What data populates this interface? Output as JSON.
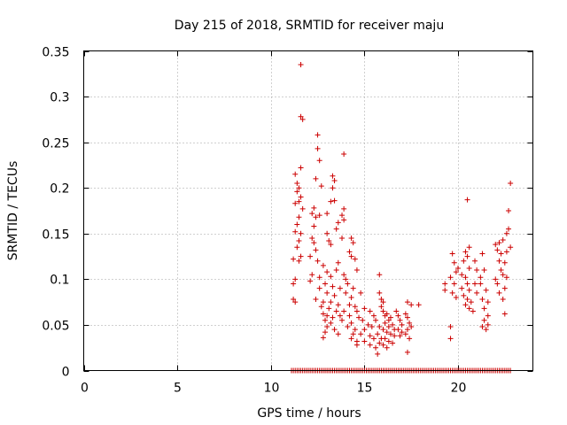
{
  "chart_data": {
    "type": "scatter",
    "title": "Day 215 of 2018, SRMTID for receiver maju",
    "xlabel": "GPS time / hours",
    "ylabel": "SRMTID / TECUs",
    "xlim": [
      0,
      24
    ],
    "ylim": [
      0,
      0.35
    ],
    "x_ticks": [
      0,
      5,
      10,
      15,
      20
    ],
    "x_tick_labels": [
      "0",
      "5",
      "10",
      "15",
      "20"
    ],
    "y_ticks": [
      0,
      0.05,
      0.1,
      0.15,
      0.2,
      0.25,
      0.3,
      0.35
    ],
    "y_tick_labels": [
      "0",
      "0.05",
      "0.1",
      "0.15",
      "0.2",
      "0.25",
      "0.3",
      "0.35"
    ],
    "grid": true,
    "marker": "+",
    "color": "#cc0000",
    "series": [
      {
        "name": "SRMTID",
        "points": [
          [
            11.6,
            0.335
          ],
          [
            11.6,
            0.278
          ],
          [
            11.7,
            0.275
          ],
          [
            12.5,
            0.258
          ],
          [
            12.5,
            0.243
          ],
          [
            13.9,
            0.237
          ],
          [
            12.6,
            0.23
          ],
          [
            11.6,
            0.222
          ],
          [
            11.3,
            0.215
          ],
          [
            13.3,
            0.213
          ],
          [
            12.4,
            0.21
          ],
          [
            13.4,
            0.208
          ],
          [
            11.4,
            0.205
          ],
          [
            11.5,
            0.2
          ],
          [
            12.7,
            0.202
          ],
          [
            11.4,
            0.196
          ],
          [
            13.3,
            0.2
          ],
          [
            11.6,
            0.19
          ],
          [
            11.3,
            0.183
          ],
          [
            11.5,
            0.185
          ],
          [
            13.2,
            0.185
          ],
          [
            11.7,
            0.177
          ],
          [
            12.3,
            0.178
          ],
          [
            12.2,
            0.172
          ],
          [
            12.6,
            0.17
          ],
          [
            13.0,
            0.172
          ],
          [
            13.4,
            0.186
          ],
          [
            13.9,
            0.177
          ],
          [
            11.5,
            0.168
          ],
          [
            12.4,
            0.168
          ],
          [
            13.8,
            0.17
          ],
          [
            11.4,
            0.16
          ],
          [
            12.3,
            0.158
          ],
          [
            13.6,
            0.162
          ],
          [
            13.9,
            0.165
          ],
          [
            11.3,
            0.152
          ],
          [
            11.6,
            0.15
          ],
          [
            12.2,
            0.145
          ],
          [
            13.0,
            0.15
          ],
          [
            13.5,
            0.155
          ],
          [
            11.5,
            0.142
          ],
          [
            12.3,
            0.14
          ],
          [
            13.1,
            0.142
          ],
          [
            13.8,
            0.145
          ],
          [
            14.3,
            0.145
          ],
          [
            14.4,
            0.14
          ],
          [
            11.4,
            0.135
          ],
          [
            12.4,
            0.132
          ],
          [
            13.2,
            0.138
          ],
          [
            14.2,
            0.13
          ],
          [
            11.6,
            0.125
          ],
          [
            12.1,
            0.125
          ],
          [
            12.5,
            0.12
          ],
          [
            14.3,
            0.125
          ],
          [
            14.5,
            0.122
          ],
          [
            11.2,
            0.122
          ],
          [
            11.5,
            0.12
          ],
          [
            12.8,
            0.115
          ],
          [
            13.6,
            0.118
          ],
          [
            14.6,
            0.11
          ],
          [
            12.2,
            0.105
          ],
          [
            12.6,
            0.102
          ],
          [
            13.0,
            0.108
          ],
          [
            13.2,
            0.103
          ],
          [
            13.5,
            0.11
          ],
          [
            13.9,
            0.105
          ],
          [
            14.0,
            0.1
          ],
          [
            11.3,
            0.1
          ],
          [
            11.2,
            0.095
          ],
          [
            12.1,
            0.098
          ],
          [
            12.9,
            0.095
          ],
          [
            13.3,
            0.092
          ],
          [
            13.7,
            0.09
          ],
          [
            14.1,
            0.095
          ],
          [
            14.4,
            0.09
          ],
          [
            12.6,
            0.09
          ],
          [
            13.0,
            0.085
          ],
          [
            13.4,
            0.082
          ],
          [
            14.0,
            0.085
          ],
          [
            14.3,
            0.08
          ],
          [
            14.8,
            0.085
          ],
          [
            11.2,
            0.078
          ],
          [
            11.3,
            0.075
          ],
          [
            12.4,
            0.078
          ],
          [
            12.8,
            0.075
          ],
          [
            13.2,
            0.075
          ],
          [
            13.6,
            0.072
          ],
          [
            14.2,
            0.072
          ],
          [
            14.5,
            0.07
          ],
          [
            12.7,
            0.07
          ],
          [
            13.1,
            0.068
          ],
          [
            13.5,
            0.065
          ],
          [
            13.9,
            0.065
          ],
          [
            14.6,
            0.065
          ],
          [
            15.0,
            0.068
          ],
          [
            15.3,
            0.065
          ],
          [
            12.8,
            0.062
          ],
          [
            13.0,
            0.06
          ],
          [
            13.3,
            0.058
          ],
          [
            13.7,
            0.06
          ],
          [
            14.2,
            0.06
          ],
          [
            14.7,
            0.058
          ],
          [
            15.5,
            0.06
          ],
          [
            12.9,
            0.055
          ],
          [
            13.2,
            0.052
          ],
          [
            13.8,
            0.055
          ],
          [
            14.3,
            0.052
          ],
          [
            14.9,
            0.055
          ],
          [
            15.2,
            0.05
          ],
          [
            15.6,
            0.055
          ],
          [
            13.0,
            0.048
          ],
          [
            13.4,
            0.045
          ],
          [
            14.1,
            0.048
          ],
          [
            14.5,
            0.045
          ],
          [
            15.0,
            0.045
          ],
          [
            15.4,
            0.048
          ],
          [
            15.8,
            0.048
          ],
          [
            12.9,
            0.042
          ],
          [
            13.6,
            0.04
          ],
          [
            14.4,
            0.04
          ],
          [
            14.8,
            0.04
          ],
          [
            15.3,
            0.038
          ],
          [
            15.7,
            0.04
          ],
          [
            12.8,
            0.036
          ],
          [
            14.3,
            0.035
          ],
          [
            14.6,
            0.032
          ],
          [
            15.0,
            0.032
          ],
          [
            15.5,
            0.035
          ],
          [
            15.9,
            0.035
          ],
          [
            14.6,
            0.028
          ],
          [
            15.3,
            0.028
          ],
          [
            15.6,
            0.025
          ],
          [
            15.8,
            0.03
          ],
          [
            15.7,
            0.018
          ],
          [
            15.8,
            0.105
          ],
          [
            15.8,
            0.085
          ],
          [
            15.9,
            0.078
          ],
          [
            16.0,
            0.075
          ],
          [
            15.9,
            0.07
          ],
          [
            16.0,
            0.065
          ],
          [
            16.1,
            0.06
          ],
          [
            16.2,
            0.062
          ],
          [
            16.3,
            0.055
          ],
          [
            16.4,
            0.058
          ],
          [
            16.1,
            0.052
          ],
          [
            16.3,
            0.048
          ],
          [
            16.5,
            0.05
          ],
          [
            16.6,
            0.045
          ],
          [
            16.0,
            0.045
          ],
          [
            16.2,
            0.042
          ],
          [
            16.4,
            0.04
          ],
          [
            16.6,
            0.038
          ],
          [
            16.1,
            0.035
          ],
          [
            16.3,
            0.032
          ],
          [
            16.5,
            0.03
          ],
          [
            16.0,
            0.028
          ],
          [
            16.2,
            0.025
          ],
          [
            16.7,
            0.065
          ],
          [
            16.8,
            0.06
          ],
          [
            16.9,
            0.055
          ],
          [
            17.0,
            0.05
          ],
          [
            16.8,
            0.045
          ],
          [
            17.0,
            0.042
          ],
          [
            16.9,
            0.038
          ],
          [
            17.2,
            0.062
          ],
          [
            17.3,
            0.058
          ],
          [
            17.4,
            0.052
          ],
          [
            17.3,
            0.045
          ],
          [
            17.5,
            0.048
          ],
          [
            17.2,
            0.04
          ],
          [
            17.4,
            0.035
          ],
          [
            17.5,
            0.072
          ],
          [
            17.3,
            0.075
          ],
          [
            17.3,
            0.02
          ],
          [
            17.9,
            0.072
          ],
          [
            19.3,
            0.095
          ],
          [
            19.3,
            0.088
          ],
          [
            19.7,
            0.128
          ],
          [
            19.8,
            0.118
          ],
          [
            19.9,
            0.108
          ],
          [
            19.6,
            0.102
          ],
          [
            19.8,
            0.095
          ],
          [
            19.7,
            0.085
          ],
          [
            19.9,
            0.08
          ],
          [
            20.0,
            0.112
          ],
          [
            19.6,
            0.048
          ],
          [
            19.6,
            0.035
          ],
          [
            20.5,
            0.187
          ],
          [
            20.4,
            0.13
          ],
          [
            20.5,
            0.125
          ],
          [
            20.3,
            0.12
          ],
          [
            20.6,
            0.112
          ],
          [
            20.2,
            0.105
          ],
          [
            20.4,
            0.102
          ],
          [
            20.5,
            0.095
          ],
          [
            20.2,
            0.09
          ],
          [
            20.6,
            0.088
          ],
          [
            20.3,
            0.082
          ],
          [
            20.5,
            0.078
          ],
          [
            20.7,
            0.075
          ],
          [
            20.4,
            0.072
          ],
          [
            20.6,
            0.068
          ],
          [
            20.8,
            0.065
          ],
          [
            20.6,
            0.135
          ],
          [
            20.9,
            0.12
          ],
          [
            21.0,
            0.11
          ],
          [
            20.9,
            0.095
          ],
          [
            21.0,
            0.085
          ],
          [
            21.2,
            0.102
          ],
          [
            21.3,
            0.128
          ],
          [
            21.4,
            0.11
          ],
          [
            21.2,
            0.095
          ],
          [
            21.5,
            0.088
          ],
          [
            21.3,
            0.078
          ],
          [
            21.6,
            0.075
          ],
          [
            21.4,
            0.068
          ],
          [
            21.6,
            0.06
          ],
          [
            21.4,
            0.055
          ],
          [
            21.6,
            0.05
          ],
          [
            21.5,
            0.045
          ],
          [
            21.3,
            0.048
          ],
          [
            22.0,
            0.138
          ],
          [
            22.2,
            0.14
          ],
          [
            22.1,
            0.132
          ],
          [
            22.3,
            0.128
          ],
          [
            22.4,
            0.143
          ],
          [
            22.2,
            0.12
          ],
          [
            22.5,
            0.118
          ],
          [
            22.3,
            0.11
          ],
          [
            22.0,
            0.1
          ],
          [
            22.1,
            0.095
          ],
          [
            22.4,
            0.105
          ],
          [
            22.6,
            0.102
          ],
          [
            22.5,
            0.09
          ],
          [
            22.2,
            0.085
          ],
          [
            22.4,
            0.078
          ],
          [
            22.5,
            0.062
          ],
          [
            22.6,
            0.15
          ],
          [
            22.7,
            0.155
          ],
          [
            22.7,
            0.175
          ],
          [
            22.8,
            0.135
          ],
          [
            22.8,
            0.205
          ],
          [
            22.6,
            0.13
          ]
        ]
      }
    ],
    "zero_band": {
      "value": 0,
      "from": 11.1,
      "to": 22.8,
      "step": 0.1
    }
  }
}
